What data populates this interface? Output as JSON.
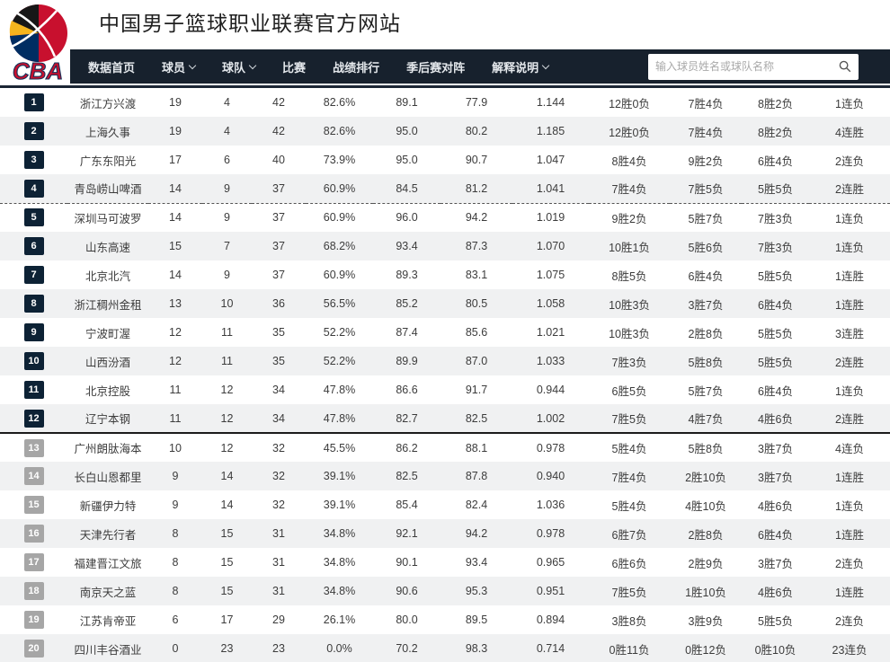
{
  "header": {
    "logo_text": "CBA",
    "title": "中国男子篮球职业联赛官方网站"
  },
  "nav": {
    "items": [
      {
        "label": "数据首页",
        "has_dropdown": false
      },
      {
        "label": "球员",
        "has_dropdown": true
      },
      {
        "label": "球队",
        "has_dropdown": true
      },
      {
        "label": "比赛",
        "has_dropdown": false
      },
      {
        "label": "战绩排行",
        "has_dropdown": false
      },
      {
        "label": "季后赛对阵",
        "has_dropdown": false
      },
      {
        "label": "解释说明",
        "has_dropdown": true
      }
    ],
    "search_placeholder": "输入球员姓名或球队名称",
    "search_icon": "magnifier"
  },
  "colors": {
    "nav_bg": "#17212d",
    "badge_dark": "#0d2235",
    "badge_gray": "#a6a6a6",
    "stripe": "#f0f1f2",
    "logo_red": "#c8102e",
    "logo_navy": "#002d62",
    "logo_yellow": "#ffb81c"
  },
  "standings": {
    "rows": [
      {
        "rank": "1",
        "team": "浙江方兴渡",
        "wins": "19",
        "losses": "4",
        "points": "42",
        "win_pct": "82.6%",
        "pts_for": "89.1",
        "pts_against": "77.9",
        "ratio": "1.144",
        "home": "12胜0负",
        "away": "7胜4负",
        "last10": "8胜2负",
        "streak": "1连负"
      },
      {
        "rank": "2",
        "team": "上海久事",
        "wins": "19",
        "losses": "4",
        "points": "42",
        "win_pct": "82.6%",
        "pts_for": "95.0",
        "pts_against": "80.2",
        "ratio": "1.185",
        "home": "12胜0负",
        "away": "7胜4负",
        "last10": "8胜2负",
        "streak": "4连胜"
      },
      {
        "rank": "3",
        "team": "广东东阳光",
        "wins": "17",
        "losses": "6",
        "points": "40",
        "win_pct": "73.9%",
        "pts_for": "95.0",
        "pts_against": "90.7",
        "ratio": "1.047",
        "home": "8胜4负",
        "away": "9胜2负",
        "last10": "6胜4负",
        "streak": "2连负"
      },
      {
        "rank": "4",
        "team": "青岛崂山啤酒",
        "wins": "14",
        "losses": "9",
        "points": "37",
        "win_pct": "60.9%",
        "pts_for": "84.5",
        "pts_against": "81.2",
        "ratio": "1.041",
        "home": "7胜4负",
        "away": "7胜5负",
        "last10": "5胜5负",
        "streak": "2连胜"
      },
      {
        "rank": "5",
        "team": "深圳马可波罗",
        "wins": "14",
        "losses": "9",
        "points": "37",
        "win_pct": "60.9%",
        "pts_for": "96.0",
        "pts_against": "94.2",
        "ratio": "1.019",
        "home": "9胜2负",
        "away": "5胜7负",
        "last10": "7胜3负",
        "streak": "1连负"
      },
      {
        "rank": "6",
        "team": "山东高速",
        "wins": "15",
        "losses": "7",
        "points": "37",
        "win_pct": "68.2%",
        "pts_for": "93.4",
        "pts_against": "87.3",
        "ratio": "1.070",
        "home": "10胜1负",
        "away": "5胜6负",
        "last10": "7胜3负",
        "streak": "1连负"
      },
      {
        "rank": "7",
        "team": "北京北汽",
        "wins": "14",
        "losses": "9",
        "points": "37",
        "win_pct": "60.9%",
        "pts_for": "89.3",
        "pts_against": "83.1",
        "ratio": "1.075",
        "home": "8胜5负",
        "away": "6胜4负",
        "last10": "5胜5负",
        "streak": "1连胜"
      },
      {
        "rank": "8",
        "team": "浙江稠州金租",
        "wins": "13",
        "losses": "10",
        "points": "36",
        "win_pct": "56.5%",
        "pts_for": "85.2",
        "pts_against": "80.5",
        "ratio": "1.058",
        "home": "10胜3负",
        "away": "3胜7负",
        "last10": "6胜4负",
        "streak": "1连胜"
      },
      {
        "rank": "9",
        "team": "宁波町渥",
        "wins": "12",
        "losses": "11",
        "points": "35",
        "win_pct": "52.2%",
        "pts_for": "87.4",
        "pts_against": "85.6",
        "ratio": "1.021",
        "home": "10胜3负",
        "away": "2胜8负",
        "last10": "5胜5负",
        "streak": "3连胜"
      },
      {
        "rank": "10",
        "team": "山西汾酒",
        "wins": "12",
        "losses": "11",
        "points": "35",
        "win_pct": "52.2%",
        "pts_for": "89.9",
        "pts_against": "87.0",
        "ratio": "1.033",
        "home": "7胜3负",
        "away": "5胜8负",
        "last10": "5胜5负",
        "streak": "2连胜"
      },
      {
        "rank": "11",
        "team": "北京控股",
        "wins": "11",
        "losses": "12",
        "points": "34",
        "win_pct": "47.8%",
        "pts_for": "86.6",
        "pts_against": "91.7",
        "ratio": "0.944",
        "home": "6胜5负",
        "away": "5胜7负",
        "last10": "6胜4负",
        "streak": "1连负"
      },
      {
        "rank": "12",
        "team": "辽宁本钢",
        "wins": "11",
        "losses": "12",
        "points": "34",
        "win_pct": "47.8%",
        "pts_for": "82.7",
        "pts_against": "82.5",
        "ratio": "1.002",
        "home": "7胜5负",
        "away": "4胜7负",
        "last10": "4胜6负",
        "streak": "2连胜"
      },
      {
        "rank": "13",
        "team": "广州朗肽海本",
        "wins": "10",
        "losses": "12",
        "points": "32",
        "win_pct": "45.5%",
        "pts_for": "86.2",
        "pts_against": "88.1",
        "ratio": "0.978",
        "home": "5胜4负",
        "away": "5胜8负",
        "last10": "3胜7负",
        "streak": "4连负"
      },
      {
        "rank": "14",
        "team": "长白山恩都里",
        "wins": "9",
        "losses": "14",
        "points": "32",
        "win_pct": "39.1%",
        "pts_for": "82.5",
        "pts_against": "87.8",
        "ratio": "0.940",
        "home": "7胜4负",
        "away": "2胜10负",
        "last10": "3胜7负",
        "streak": "1连胜"
      },
      {
        "rank": "15",
        "team": "新疆伊力特",
        "wins": "9",
        "losses": "14",
        "points": "32",
        "win_pct": "39.1%",
        "pts_for": "85.4",
        "pts_against": "82.4",
        "ratio": "1.036",
        "home": "5胜4负",
        "away": "4胜10负",
        "last10": "4胜6负",
        "streak": "1连负"
      },
      {
        "rank": "16",
        "team": "天津先行者",
        "wins": "8",
        "losses": "15",
        "points": "31",
        "win_pct": "34.8%",
        "pts_for": "92.1",
        "pts_against": "94.2",
        "ratio": "0.978",
        "home": "6胜7负",
        "away": "2胜8负",
        "last10": "6胜4负",
        "streak": "1连胜"
      },
      {
        "rank": "17",
        "team": "福建晋江文旅",
        "wins": "8",
        "losses": "15",
        "points": "31",
        "win_pct": "34.8%",
        "pts_for": "90.1",
        "pts_against": "93.4",
        "ratio": "0.965",
        "home": "6胜6负",
        "away": "2胜9负",
        "last10": "3胜7负",
        "streak": "2连负"
      },
      {
        "rank": "18",
        "team": "南京天之蓝",
        "wins": "8",
        "losses": "15",
        "points": "31",
        "win_pct": "34.8%",
        "pts_for": "90.6",
        "pts_against": "95.3",
        "ratio": "0.951",
        "home": "7胜5负",
        "away": "1胜10负",
        "last10": "4胜6负",
        "streak": "1连胜"
      },
      {
        "rank": "19",
        "team": "江苏肯帝亚",
        "wins": "6",
        "losses": "17",
        "points": "29",
        "win_pct": "26.1%",
        "pts_for": "80.0",
        "pts_against": "89.5",
        "ratio": "0.894",
        "home": "3胜8负",
        "away": "3胜9负",
        "last10": "5胜5负",
        "streak": "2连负"
      },
      {
        "rank": "20",
        "team": "四川丰谷酒业",
        "wins": "0",
        "losses": "23",
        "points": "23",
        "win_pct": "0.0%",
        "pts_for": "70.2",
        "pts_against": "98.3",
        "ratio": "0.714",
        "home": "0胜11负",
        "away": "0胜12负",
        "last10": "0胜10负",
        "streak": "23连负"
      }
    ]
  }
}
